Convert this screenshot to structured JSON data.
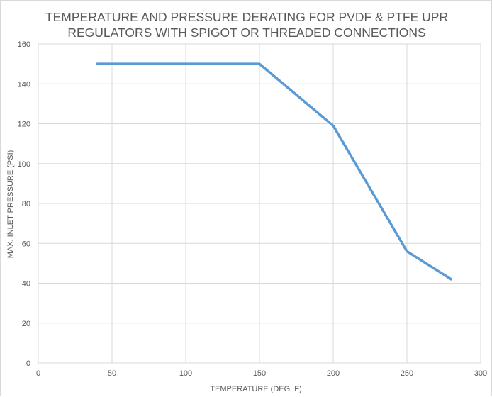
{
  "chart_data": {
    "type": "scatter",
    "title_lines": [
      "TEMPERATURE AND PRESSURE DERATING FOR PVDF & PTFE UPR",
      "REGULATORS WITH SPIGOT OR THREADED  CONNECTIONS"
    ],
    "xlabel": "TEMPERATURE   (DEG. F)",
    "ylabel": "MAX. INLET PRESSURE  (PSI)",
    "xlim": [
      0,
      300
    ],
    "ylim": [
      0,
      160
    ],
    "x_ticks": [
      0,
      50,
      100,
      150,
      200,
      250,
      300
    ],
    "y_ticks": [
      0,
      20,
      40,
      60,
      80,
      100,
      120,
      140,
      160
    ],
    "grid": true,
    "legend": "none",
    "series": [
      {
        "x": [
          40,
          150,
          200,
          250,
          280
        ],
        "y": [
          150,
          150,
          119,
          56,
          42
        ],
        "color": "#5b9bd5",
        "style": "line"
      }
    ]
  }
}
